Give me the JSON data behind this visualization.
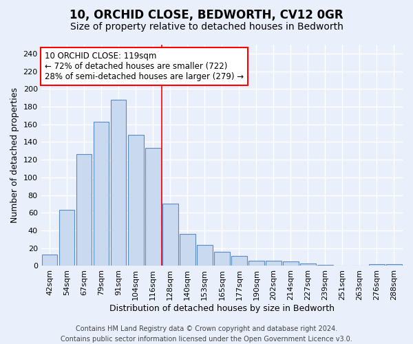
{
  "title": "10, ORCHID CLOSE, BEDWORTH, CV12 0GR",
  "subtitle": "Size of property relative to detached houses in Bedworth",
  "xlabel": "Distribution of detached houses by size in Bedworth",
  "ylabel": "Number of detached properties",
  "categories": [
    "42sqm",
    "54sqm",
    "67sqm",
    "79sqm",
    "91sqm",
    "104sqm",
    "116sqm",
    "128sqm",
    "140sqm",
    "153sqm",
    "165sqm",
    "177sqm",
    "190sqm",
    "202sqm",
    "214sqm",
    "227sqm",
    "239sqm",
    "251sqm",
    "263sqm",
    "276sqm",
    "288sqm"
  ],
  "values": [
    13,
    63,
    126,
    163,
    188,
    148,
    133,
    70,
    36,
    24,
    16,
    11,
    6,
    6,
    5,
    3,
    1,
    0,
    0,
    2,
    2
  ],
  "bar_color": "#c9d9f0",
  "bar_edge_color": "#5a8ac6",
  "background_color": "#eaf0fb",
  "grid_color": "#ffffff",
  "vline_x": 6.5,
  "vline_color": "red",
  "annotation_text": "10 ORCHID CLOSE: 119sqm\n← 72% of detached houses are smaller (722)\n28% of semi-detached houses are larger (279) →",
  "annotation_box_color": "white",
  "annotation_box_edge": "red",
  "ylim": [
    0,
    250
  ],
  "yticks": [
    0,
    20,
    40,
    60,
    80,
    100,
    120,
    140,
    160,
    180,
    200,
    220,
    240
  ],
  "footnote": "Contains HM Land Registry data © Crown copyright and database right 2024.\nContains public sector information licensed under the Open Government Licence v3.0.",
  "title_fontsize": 12,
  "subtitle_fontsize": 10,
  "axis_label_fontsize": 9,
  "tick_fontsize": 8,
  "annotation_fontsize": 8.5,
  "footnote_fontsize": 7
}
